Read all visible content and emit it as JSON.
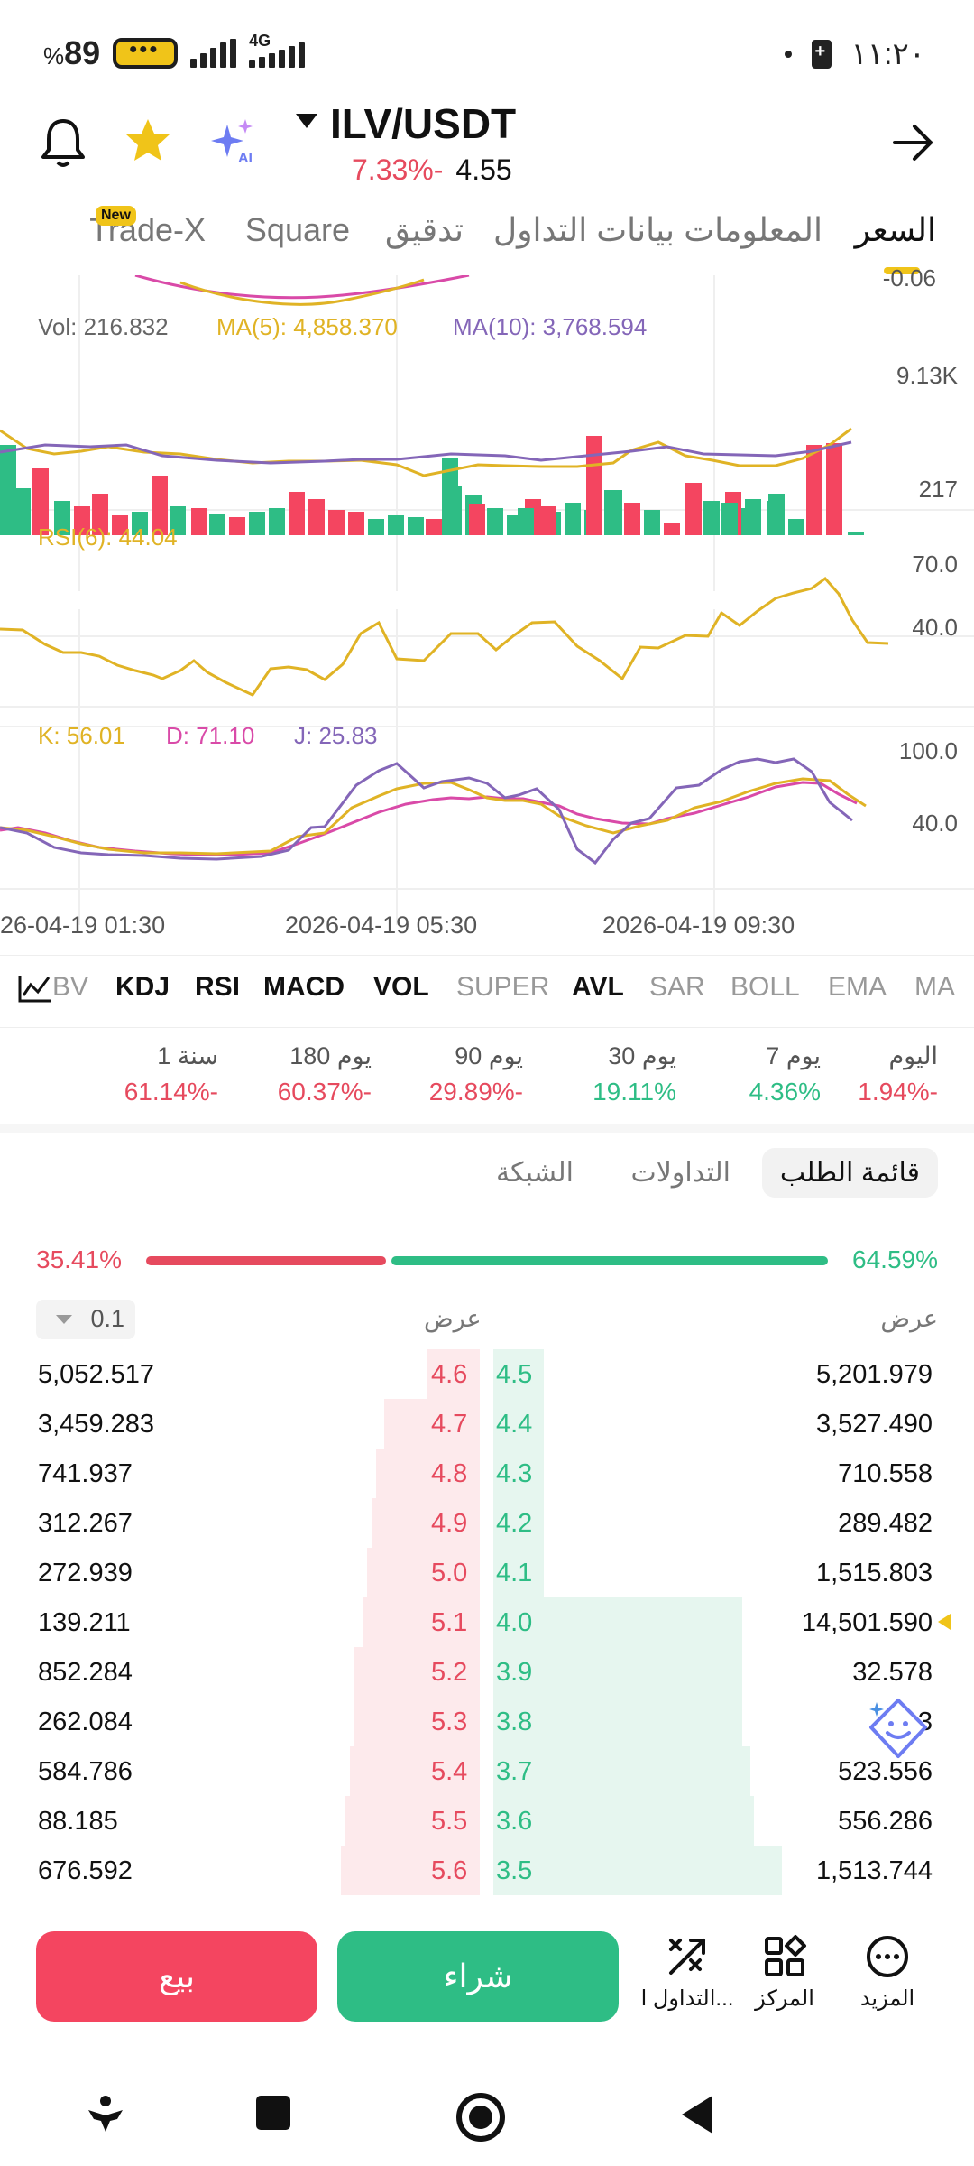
{
  "status_bar": {
    "battery_percent": "89",
    "battery_symbol": "%",
    "network": "4G",
    "time": "١١:٢٠"
  },
  "header": {
    "pair": "ILV/USDT",
    "change": "7.33%-",
    "price": "4.55"
  },
  "tabs": [
    {
      "label": "السعر",
      "active": true
    },
    {
      "label": "المعلومات",
      "active": false
    },
    {
      "label": "بيانات التداول",
      "active": false
    },
    {
      "label": "تدقيق",
      "active": false
    },
    {
      "label": "Square",
      "active": false
    },
    {
      "label": "Trade-X",
      "active": false,
      "badge": "New"
    }
  ],
  "chart": {
    "top_axis_value": "-0.06",
    "vol_label": "Vol: 216.832",
    "ma5_label": "MA(5): 4,858.370",
    "ma10_label": "MA(10): 3,768.594",
    "vol_axis_max": "9.13K",
    "vol_axis_min": "217",
    "rsi_label": "RSI(6): 44.04",
    "rsi_axis_high": "70.0",
    "rsi_axis_low": "40.0",
    "k_label": "K: 56.01",
    "d_label": "D: 71.10",
    "j_label": "J: 25.83",
    "kdj_axis_high": "100.0",
    "kdj_axis_low": "40.0",
    "time_labels": [
      "26-04-19 01:30",
      "2026-04-19 05:30",
      "2026-04-19 09:30"
    ],
    "colors": {
      "up": "#2ebd85",
      "down": "#f44560",
      "ma5": "#e0b325",
      "ma10": "#8466b8",
      "k": "#e0b325",
      "d": "#d94aa8",
      "j": "#8466b8"
    }
  },
  "chart_data": {
    "type": "bar",
    "volume_range": [
      217,
      9130
    ],
    "rsi_range_shown": [
      40.0,
      70.0
    ],
    "kdj_range_shown": [
      40.0,
      100.0
    ]
  },
  "indicators": [
    "BV",
    "KDJ",
    "RSI",
    "MACD",
    "VOL",
    "SUPER",
    "AVL",
    "SAR",
    "BOLL",
    "EMA",
    "MA"
  ],
  "performance": [
    {
      "label": "اليوم",
      "value": "1.94%-",
      "positive": false
    },
    {
      "label": "7 يوم",
      "value": "4.36%",
      "positive": true
    },
    {
      "label": "30 يوم",
      "value": "19.11%",
      "positive": true
    },
    {
      "label": "90 يوم",
      "value": "29.89%-",
      "positive": false
    },
    {
      "label": "180 يوم",
      "value": "60.37%-",
      "positive": false
    },
    {
      "label": "1 سنة",
      "value": "61.14%-",
      "positive": false
    }
  ],
  "orderbook_tabs": [
    {
      "label": "قائمة الطلب",
      "active": true
    },
    {
      "label": "التداولات",
      "active": false
    },
    {
      "label": "الشبكة",
      "active": false
    }
  ],
  "ratio": {
    "sell_pct": "35.41%",
    "buy_pct": "64.59%",
    "sell_fraction": 0.3541
  },
  "orderbook_header": {
    "precision": "0.1",
    "ask_col": "عرض",
    "bid_col": "عرض"
  },
  "orderbook_rows": [
    {
      "ask_qty": "5,052.517",
      "ask_px": "4.6",
      "bid_px": "4.5",
      "bid_qty": "5,201.979",
      "ask_depth": 0.12,
      "bid_depth": 0.05
    },
    {
      "ask_qty": "3,459.283",
      "ask_px": "4.7",
      "bid_px": "4.4",
      "bid_qty": "3,527.490",
      "ask_depth": 0.22,
      "bid_depth": 0.09
    },
    {
      "ask_qty": "741.937",
      "ask_px": "4.8",
      "bid_px": "4.3",
      "bid_qty": "710.558",
      "ask_depth": 0.24,
      "bid_depth": 0.09
    },
    {
      "ask_qty": "312.267",
      "ask_px": "4.9",
      "bid_px": "4.2",
      "bid_qty": "289.482",
      "ask_depth": 0.25,
      "bid_depth": 0.1
    },
    {
      "ask_qty": "272.939",
      "ask_px": "5.0",
      "bid_px": "4.1",
      "bid_qty": "1,515.803",
      "ask_depth": 0.26,
      "bid_depth": 0.12
    },
    {
      "ask_qty": "139.211",
      "ask_px": "5.1",
      "bid_px": "4.0",
      "bid_qty": "14,501.590",
      "ask_depth": 0.27,
      "bid_depth": 0.64,
      "marked": true
    },
    {
      "ask_qty": "852.284",
      "ask_px": "5.2",
      "bid_px": "3.9",
      "bid_qty": "32.578",
      "ask_depth": 0.29,
      "bid_depth": 0.64
    },
    {
      "ask_qty": "262.084",
      "ask_px": "5.3",
      "bid_px": "3.8",
      "bid_qty": "3",
      "ask_depth": 0.29,
      "bid_depth": 0.64
    },
    {
      "ask_qty": "584.786",
      "ask_px": "5.4",
      "bid_px": "3.7",
      "bid_qty": "523.556",
      "ask_depth": 0.3,
      "bid_depth": 0.66
    },
    {
      "ask_qty": "88.185",
      "ask_px": "5.5",
      "bid_px": "3.6",
      "bid_qty": "556.286",
      "ask_depth": 0.31,
      "bid_depth": 0.67
    },
    {
      "ask_qty": "676.592",
      "ask_px": "5.6",
      "bid_px": "3.5",
      "bid_qty": "1,513.744",
      "ask_depth": 0.32,
      "bid_depth": 0.74
    }
  ],
  "actions": {
    "sell": "بيع",
    "buy": "شراء",
    "trade": "التداول ا...",
    "center": "المركز",
    "more": "المزيد"
  }
}
